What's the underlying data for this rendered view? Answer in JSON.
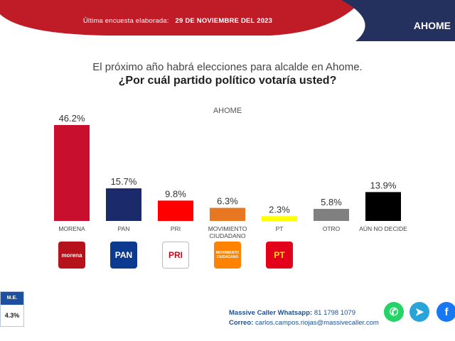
{
  "header": {
    "survey_label": "Última encuesta elaborada:",
    "survey_date": "29 DE NOVIEMBRE DEL 2023",
    "region": "AHOME"
  },
  "question": {
    "line1": "El próximo año habrá elecciones para alcalde en Ahome.",
    "line2": "¿Por cuál partido político votaría usted?"
  },
  "chart_data": {
    "type": "bar",
    "title": "AHOME",
    "xlabel": "",
    "ylabel": "",
    "ylim": [
      0,
      50
    ],
    "grid": false,
    "categories": [
      "MORENA",
      "PAN",
      "PRI",
      "MOVIMIENTO CIUDADANO",
      "PT",
      "OTRO",
      "AÚN NO DECIDE"
    ],
    "category_lines": [
      [
        "MORENA"
      ],
      [
        "PAN"
      ],
      [
        "PRI"
      ],
      [
        "MOVIMIENTO",
        "CIUDADANO"
      ],
      [
        "PT"
      ],
      [
        "OTRO"
      ],
      [
        "AÚN NO DECIDE"
      ]
    ],
    "values": [
      46.2,
      15.7,
      9.8,
      6.3,
      2.3,
      5.8,
      13.9
    ],
    "data_labels": [
      "46.2%",
      "15.7%",
      "9.8%",
      "6.3%",
      "2.3%",
      "5.8%",
      "13.9%"
    ],
    "colors": [
      "#c8102e",
      "#1b2a6b",
      "#ff0000",
      "#e87722",
      "#ffff00",
      "#808080",
      "#000000"
    ]
  },
  "logos": [
    {
      "name": "morena-logo",
      "text": "morena",
      "bg": "#b5121b",
      "fg": "#ffffff"
    },
    {
      "name": "pan-logo",
      "text": "PAN",
      "bg": "#0b3a8f",
      "fg": "#ffffff"
    },
    {
      "name": "pri-logo",
      "text": "PRI",
      "bg": "#ffffff",
      "fg": "#d4001a"
    },
    {
      "name": "mc-logo",
      "text": "MOVIMIENTO CIUDADANO",
      "bg": "#ff8300",
      "fg": "#ffffff"
    },
    {
      "name": "pt-logo",
      "text": "PT",
      "bg": "#e3001b",
      "fg": "#ffe600"
    }
  ],
  "margin_of_error": {
    "label": "M.E.",
    "value": "4.3%"
  },
  "contact": {
    "whatsapp_label": "Massive Caller Whatsapp:",
    "whatsapp_number": "81 1798 1079",
    "email_label": "Correo:",
    "email": "carlos.campos.riojas@massivecaller.com"
  },
  "social": [
    {
      "name": "whatsapp-icon",
      "glyph": "✆",
      "color": "#25d366"
    },
    {
      "name": "telegram-icon",
      "glyph": "➤",
      "color": "#2aa3d9"
    },
    {
      "name": "facebook-icon",
      "glyph": "f",
      "color": "#1877f2"
    }
  ]
}
